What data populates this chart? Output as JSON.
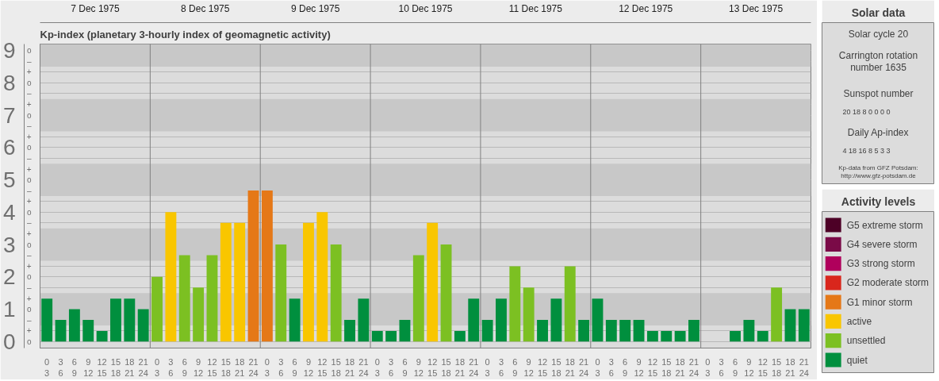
{
  "chart_data": [
    {
      "type": "bar",
      "title": "Kp-index",
      "subtitle": "(planetary 3-hourly index of geomagnetic activity)",
      "legend_title": "Activity levels",
      "legend": "right",
      "grid": "y",
      "categories": [
        "0\n3",
        "3\n6",
        "6\n9",
        "9\n12",
        "12\n15",
        "15\n18",
        "18\n21",
        "21\n24",
        "0\n3",
        "3\n6",
        "6\n9",
        "9\n12",
        "12\n15",
        "15\n18",
        "18\n21",
        "21\n24",
        "0\n3",
        "3\n6",
        "6\n9",
        "9\n12",
        "12\n15",
        "15\n18",
        "18\n21",
        "21\n24",
        "0\n3",
        "3\n6",
        "6\n9",
        "9\n12",
        "12\n15",
        "15\n18",
        "18\n21",
        "21\n24",
        "0\n3",
        "3\n6",
        "6\n9",
        "9\n12",
        "12\n15",
        "15\n18",
        "18\n21",
        "21\n24",
        "0\n3",
        "3\n6",
        "6\n9",
        "9\n12",
        "12\n15",
        "15\n18",
        "18\n21",
        "21\n24",
        "0\n3",
        "3\n6",
        "6\n9",
        "9\n12",
        "12\n15",
        "15\n18",
        "18\n21",
        "21\n24"
      ],
      "ylim": [
        -0.2,
        9.2
      ],
      "yticks": [
        0,
        1,
        2,
        3,
        4,
        5,
        6,
        7,
        8,
        9
      ],
      "annotations": [
        "7 Dec 1975",
        "8 Dec 1975",
        "9 Dec 1975",
        "10 Dec 1975",
        "11 Dec 1975",
        "12 Dec 1975",
        "13 Dec 1975",
        "o",
        "+",
        "–",
        "o",
        "+",
        "–",
        "o",
        "+",
        "–",
        "o",
        "+",
        "–",
        "o",
        "+",
        "–",
        "o",
        "+",
        "–",
        "o",
        "+",
        "–",
        "o",
        "+",
        "–",
        "o",
        "+",
        "–",
        "o"
      ],
      "bands": [
        {
          "axis": "y",
          "from": 0.5,
          "to": 1.5,
          "color": "#c8c8c8"
        },
        {
          "axis": "y",
          "from": 2.5,
          "to": 3.5,
          "color": "#c8c8c8"
        },
        {
          "axis": "y",
          "from": 4.5,
          "to": 5.5,
          "color": "#c8c8c8"
        },
        {
          "axis": "y",
          "from": 6.5,
          "to": 7.5,
          "color": "#c8c8c8"
        },
        {
          "axis": "y",
          "from": 8.5,
          "to": 9.2,
          "color": "#c8c8c8"
        }
      ],
      "series": [
        {
          "name": "G5 extreme storm",
          "color": "#4d0026",
          "values": [
            null,
            null,
            null,
            null,
            null,
            null,
            null,
            null,
            null,
            null,
            null,
            null,
            null,
            null,
            null,
            null,
            null,
            null,
            null,
            null,
            null,
            null,
            null,
            null,
            null,
            null,
            null,
            null,
            null,
            null,
            null,
            null,
            null,
            null,
            null,
            null,
            null,
            null,
            null,
            null,
            null,
            null,
            null,
            null,
            null,
            null,
            null,
            null,
            null,
            null,
            null,
            null,
            null,
            null,
            null,
            null
          ]
        },
        {
          "name": "G4 severe storm",
          "color": "#7a0a47",
          "values": [
            null,
            null,
            null,
            null,
            null,
            null,
            null,
            null,
            null,
            null,
            null,
            null,
            null,
            null,
            null,
            null,
            null,
            null,
            null,
            null,
            null,
            null,
            null,
            null,
            null,
            null,
            null,
            null,
            null,
            null,
            null,
            null,
            null,
            null,
            null,
            null,
            null,
            null,
            null,
            null,
            null,
            null,
            null,
            null,
            null,
            null,
            null,
            null,
            null,
            null,
            null,
            null,
            null,
            null,
            null,
            null
          ]
        },
        {
          "name": "G3 strong storm",
          "color": "#b0005c",
          "values": [
            null,
            null,
            null,
            null,
            null,
            null,
            null,
            null,
            null,
            null,
            null,
            null,
            null,
            null,
            null,
            null,
            null,
            null,
            null,
            null,
            null,
            null,
            null,
            null,
            null,
            null,
            null,
            null,
            null,
            null,
            null,
            null,
            null,
            null,
            null,
            null,
            null,
            null,
            null,
            null,
            null,
            null,
            null,
            null,
            null,
            null,
            null,
            null,
            null,
            null,
            null,
            null,
            null,
            null,
            null,
            null
          ]
        },
        {
          "name": "G2 moderate storm",
          "color": "#d9261c",
          "values": [
            null,
            null,
            null,
            null,
            null,
            null,
            null,
            null,
            null,
            null,
            null,
            null,
            null,
            null,
            null,
            null,
            null,
            null,
            null,
            null,
            null,
            null,
            null,
            null,
            null,
            null,
            null,
            null,
            null,
            null,
            null,
            null,
            null,
            null,
            null,
            null,
            null,
            null,
            null,
            null,
            null,
            null,
            null,
            null,
            null,
            null,
            null,
            null,
            null,
            null,
            null,
            null,
            null,
            null,
            null,
            null
          ]
        },
        {
          "name": "G1 minor storm",
          "color": "#e57817",
          "values": [
            null,
            null,
            null,
            null,
            null,
            null,
            null,
            null,
            null,
            null,
            null,
            null,
            null,
            null,
            null,
            4.67,
            4.67,
            null,
            null,
            null,
            null,
            null,
            null,
            null,
            null,
            null,
            null,
            null,
            null,
            null,
            null,
            null,
            null,
            null,
            null,
            null,
            null,
            null,
            null,
            null,
            null,
            null,
            null,
            null,
            null,
            null,
            null,
            null,
            null,
            null,
            null,
            null,
            null,
            null,
            null,
            null
          ]
        },
        {
          "name": "active",
          "color": "#f9c600",
          "values": [
            null,
            null,
            null,
            null,
            null,
            null,
            null,
            null,
            null,
            4,
            null,
            null,
            null,
            3.67,
            3.67,
            null,
            null,
            null,
            null,
            3.67,
            4,
            null,
            null,
            null,
            null,
            null,
            null,
            null,
            3.67,
            null,
            null,
            null,
            null,
            null,
            null,
            null,
            null,
            null,
            null,
            null,
            null,
            null,
            null,
            null,
            null,
            null,
            null,
            null,
            null,
            null,
            null,
            null,
            null,
            null,
            null,
            null
          ]
        },
        {
          "name": "unsettled",
          "color": "#7cc022",
          "values": [
            null,
            null,
            null,
            null,
            null,
            null,
            null,
            null,
            2,
            null,
            2.67,
            1.67,
            2.67,
            null,
            null,
            null,
            null,
            3,
            null,
            null,
            null,
            3,
            null,
            null,
            null,
            null,
            null,
            2.67,
            null,
            3,
            null,
            null,
            null,
            null,
            2.33,
            1.67,
            null,
            null,
            2.33,
            null,
            null,
            null,
            null,
            null,
            null,
            null,
            null,
            null,
            null,
            null,
            null,
            null,
            null,
            1.67,
            null,
            null
          ]
        },
        {
          "name": "quiet",
          "color": "#008f3e",
          "values": [
            1.33,
            0.67,
            1,
            0.67,
            0.33,
            1.33,
            1.33,
            1,
            null,
            null,
            null,
            null,
            null,
            null,
            null,
            null,
            null,
            null,
            1.33,
            null,
            null,
            null,
            0.67,
            1.33,
            0.33,
            0.33,
            0.67,
            null,
            null,
            null,
            0.33,
            1.33,
            0.67,
            1.33,
            null,
            null,
            0.67,
            1.33,
            null,
            0.67,
            1.33,
            0.67,
            0.67,
            0.67,
            0.33,
            0.33,
            0.33,
            0.67,
            0,
            0,
            0.33,
            0.67,
            0.33,
            null,
            1,
            1
          ]
        }
      ]
    },
    {
      "type": "other",
      "title": "Solar data",
      "annotations": [
        "Solar cycle 20",
        "Carrington rotation\nnumber 1635",
        "Sunspot number",
        "20   18   8   0   0   0   0",
        "Daily Ap-index",
        "4   18   16   8   5   3   3",
        "Kp-data from GFZ Potsdam:\nhttp://www.gfz-potsdam.de"
      ]
    }
  ]
}
